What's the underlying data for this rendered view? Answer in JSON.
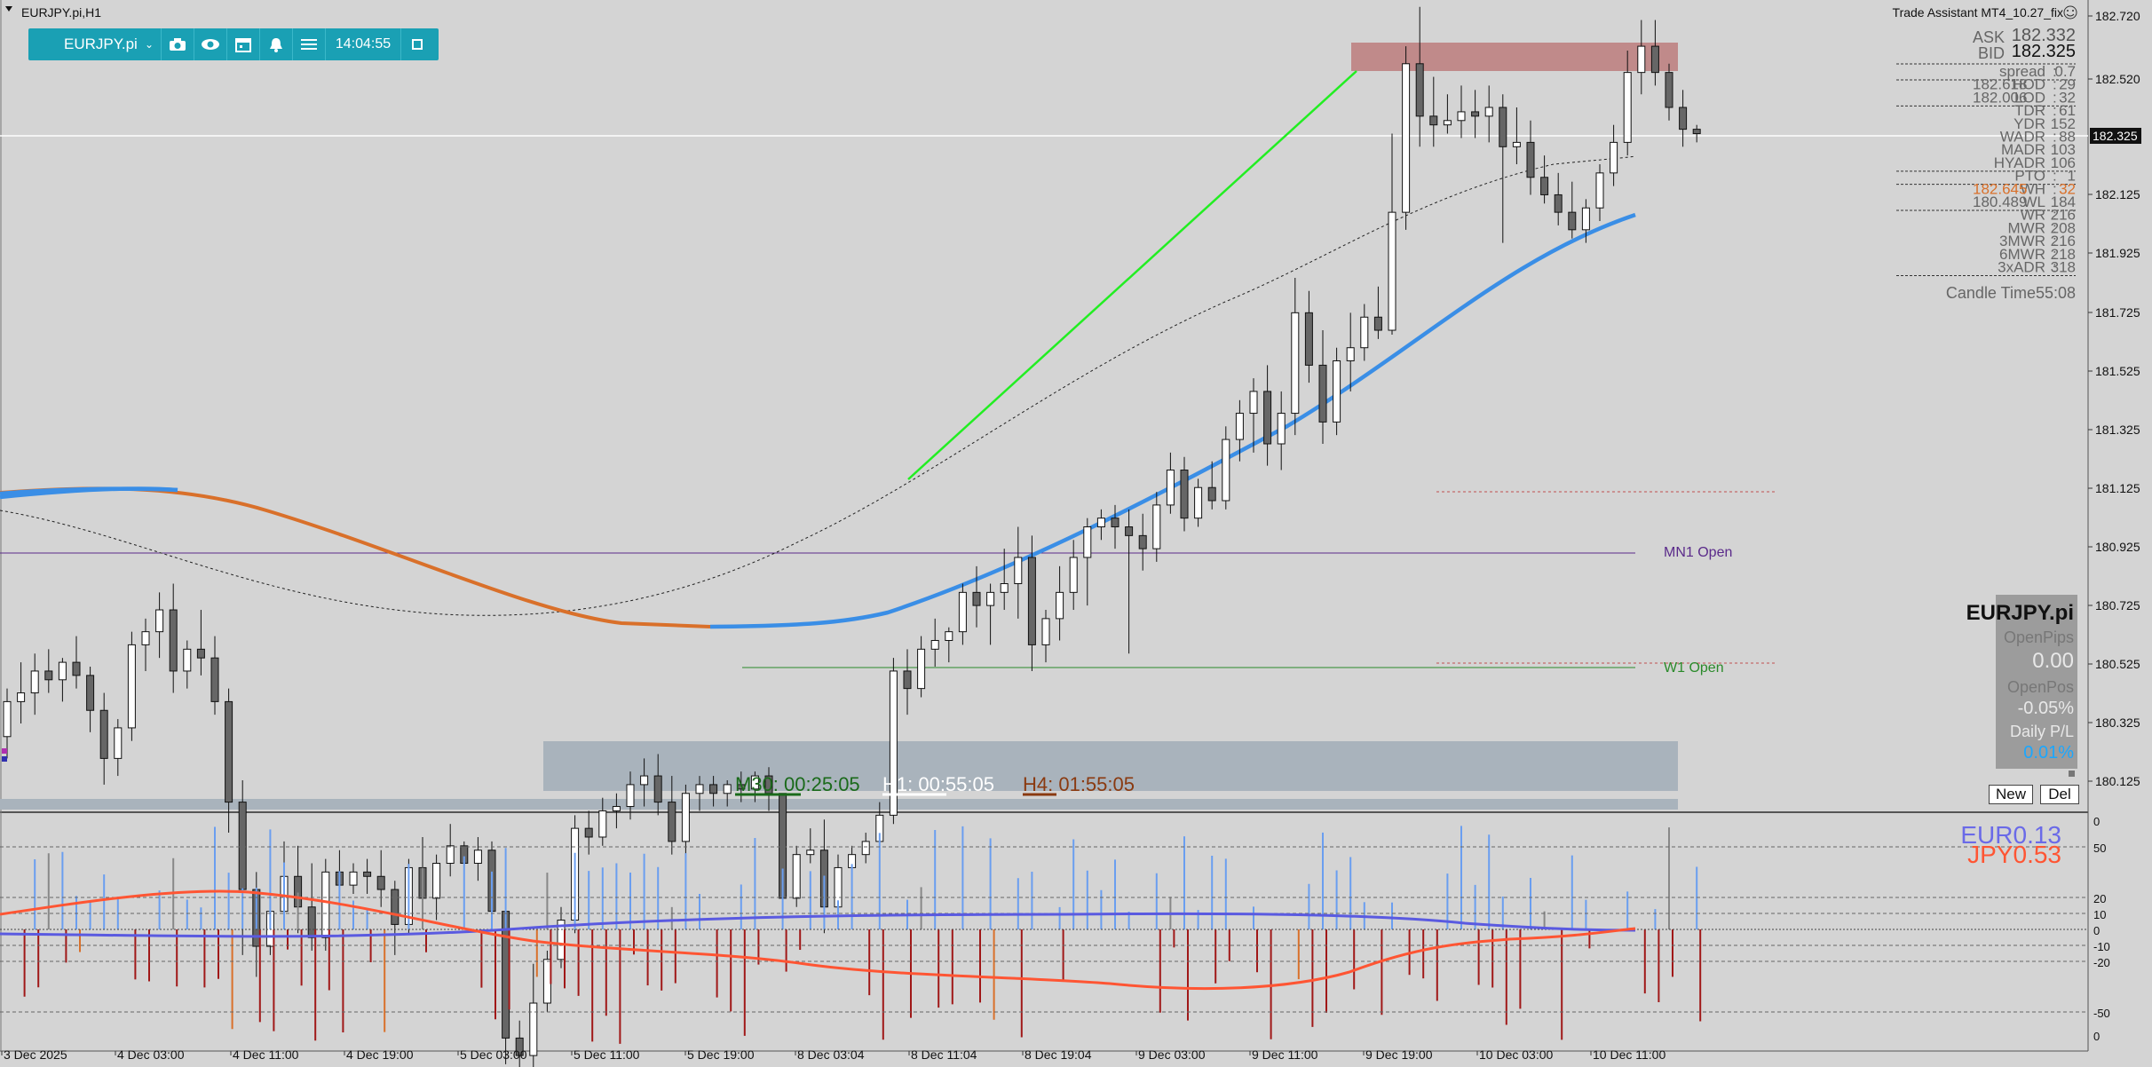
{
  "window_title": "EURJPY.pi,H1",
  "toolbar": {
    "symbol": "EURJPY.pi",
    "time": "14:04:55",
    "icons": [
      "camera-icon",
      "eye-icon",
      "calendar-icon",
      "alert-bell-icon",
      "menu-icon",
      "window-icon"
    ]
  },
  "indicator_title": "Trade Assistant MT4_10.27_fix",
  "info_panel": {
    "ask_label": "ASK",
    "ask_value": "182.332",
    "bid_label": "BID",
    "bid_value": "182.325",
    "rows": [
      {
        "label": "spread",
        "value": "0.7"
      },
      {
        "label": "HOD",
        "extra": "182.618",
        "value": "29"
      },
      {
        "label": "LOD",
        "extra": "182.006",
        "value": "32"
      },
      {
        "label": "TDR",
        "value": "61"
      },
      {
        "label": "YDR",
        "value": "152"
      },
      {
        "label": "WADR",
        "value": "88"
      },
      {
        "label": "MADR",
        "value": "103"
      },
      {
        "label": "HYADR",
        "value": "106"
      },
      {
        "label": "PTO",
        "value": "1"
      },
      {
        "label": "WH",
        "extra": "182.645",
        "value": "32"
      },
      {
        "label": "WL",
        "extra": "180.489",
        "value": "184"
      },
      {
        "label": "WR",
        "value": "216"
      },
      {
        "label": "MWR",
        "value": "208"
      },
      {
        "label": "3MWR",
        "value": "216"
      },
      {
        "label": "6MWR",
        "value": "218"
      },
      {
        "label": "3xADR",
        "value": "318"
      }
    ],
    "candle_time": "Candle Time55:08"
  },
  "account_panel": {
    "symbol": "EURJPY.pi",
    "open_pips_label": "OpenPips",
    "open_pips": "0.00",
    "open_pos_label": "OpenPos",
    "open_pos": "-0.05%",
    "daily_pl_label": "Daily P/L",
    "daily_pl": "0.01%",
    "new_button": "New",
    "del_button": "Del"
  },
  "timers": {
    "m30": "M30: 00:25:05",
    "h1": "H1: 00:55:05",
    "h4": "H4: 01:55:05"
  },
  "level_labels": {
    "mn1": "MN1 Open",
    "w1": "W1 Open"
  },
  "price_axis": {
    "labels": [
      "182.720",
      "182.520",
      "182.325",
      "182.125",
      "181.925",
      "181.725",
      "181.525",
      "181.325",
      "181.125",
      "180.925",
      "180.725",
      "180.525",
      "180.325",
      "180.125"
    ],
    "current": "182.325"
  },
  "time_axis": [
    "3 Dec 2025",
    "4 Dec 03:00",
    "4 Dec 11:00",
    "4 Dec 19:00",
    "5 Dec 03:00",
    "5 Dec 11:00",
    "5 Dec 19:00",
    "8 Dec 03:04",
    "8 Dec 11:04",
    "8 Dec 19:04",
    "9 Dec 03:00",
    "9 Dec 11:00",
    "9 Dec 19:00",
    "10 Dec 03:00",
    "10 Dec 11:00"
  ],
  "oscillator": {
    "axis_labels": [
      "50",
      "20",
      "10",
      "0",
      "-10",
      "-20",
      "-50"
    ],
    "eur_label": "EUR0.13",
    "jpy_label": "JPY0.53"
  },
  "colors": {
    "bg": "#d4d4d4",
    "toolbar": "#1aa0b4",
    "ma_blue": "#3a8ee6",
    "ma_orange": "#d9702a",
    "trend_green": "#22ee22",
    "zone_red": "#c08a8a",
    "zone_gray": "#a9b3bc",
    "eur": "#5a5ae0",
    "jpy": "#ff5533",
    "up_bar": "#6a9ef0",
    "down_bar": "#a01818"
  },
  "chart_data": {
    "type": "candlestick",
    "symbol": "EURJPY.pi",
    "timeframe": "H1",
    "ylim": [
      180.0,
      182.75
    ],
    "candles_ohlc": [
      [
        180.95,
        181.06,
        180.9,
        181.03
      ],
      [
        181.03,
        181.12,
        180.98,
        181.05
      ],
      [
        181.05,
        181.14,
        181.0,
        181.1
      ],
      [
        181.1,
        181.15,
        181.05,
        181.08
      ],
      [
        181.08,
        181.13,
        181.03,
        181.12
      ],
      [
        181.12,
        181.18,
        181.06,
        181.09
      ],
      [
        181.09,
        181.11,
        180.96,
        181.01
      ],
      [
        181.01,
        181.05,
        180.84,
        180.9
      ],
      [
        180.9,
        180.99,
        180.86,
        180.97
      ],
      [
        180.97,
        181.19,
        180.94,
        181.16
      ],
      [
        181.16,
        181.22,
        181.1,
        181.19
      ],
      [
        181.19,
        181.28,
        181.13,
        181.24
      ],
      [
        181.24,
        181.3,
        181.05,
        181.1
      ],
      [
        181.1,
        181.17,
        181.06,
        181.15
      ],
      [
        181.15,
        181.24,
        181.09,
        181.13
      ],
      [
        181.13,
        181.18,
        181.0,
        181.03
      ],
      [
        181.03,
        181.06,
        180.73,
        180.8
      ],
      [
        180.8,
        180.85,
        180.45,
        180.6
      ],
      [
        180.6,
        180.64,
        180.4,
        180.47
      ],
      [
        180.47,
        180.58,
        180.45,
        180.55
      ],
      [
        180.55,
        180.71,
        180.52,
        180.63
      ],
      [
        180.63,
        180.7,
        180.5,
        180.56
      ],
      [
        180.56,
        180.66,
        180.46,
        180.49
      ],
      [
        180.49,
        180.67,
        180.46,
        180.64
      ],
      [
        180.64,
        180.69,
        180.58,
        180.61
      ],
      [
        180.61,
        180.66,
        180.59,
        180.64
      ],
      [
        180.64,
        180.67,
        180.59,
        180.63
      ],
      [
        180.63,
        180.69,
        180.56,
        180.6
      ],
      [
        180.6,
        180.62,
        180.45,
        180.52
      ],
      [
        180.52,
        180.67,
        180.5,
        180.65
      ],
      [
        180.65,
        180.72,
        180.55,
        180.58
      ],
      [
        180.58,
        180.68,
        180.53,
        180.66
      ],
      [
        180.66,
        180.75,
        180.63,
        180.7
      ],
      [
        180.7,
        180.71,
        180.62,
        180.66
      ],
      [
        180.66,
        180.72,
        180.62,
        180.69
      ],
      [
        180.69,
        180.71,
        180.52,
        180.55
      ],
      [
        180.55,
        180.59,
        180.2,
        180.26
      ],
      [
        180.26,
        180.3,
        180.08,
        180.22
      ],
      [
        180.22,
        180.43,
        180.1,
        180.34
      ],
      [
        180.34,
        180.46,
        180.32,
        180.44
      ],
      [
        180.44,
        180.56,
        180.42,
        180.53
      ],
      [
        180.53,
        180.77,
        180.5,
        180.74
      ],
      [
        180.74,
        180.78,
        180.68,
        180.72
      ],
      [
        180.72,
        180.81,
        180.7,
        180.78
      ],
      [
        180.78,
        180.82,
        180.74,
        180.79
      ],
      [
        180.79,
        180.87,
        180.76,
        180.84
      ],
      [
        180.84,
        180.9,
        180.79,
        180.86
      ],
      [
        180.86,
        180.91,
        180.77,
        180.8
      ],
      [
        180.8,
        180.86,
        180.68,
        180.71
      ],
      [
        180.71,
        180.84,
        180.68,
        180.82
      ],
      [
        180.82,
        180.86,
        180.78,
        180.84
      ],
      [
        180.84,
        180.86,
        180.79,
        180.82
      ],
      [
        180.82,
        180.85,
        180.79,
        180.84
      ],
      [
        180.84,
        180.87,
        180.8,
        180.83
      ],
      [
        180.83,
        180.87,
        180.8,
        180.86
      ],
      [
        180.86,
        180.88,
        180.78,
        180.82
      ],
      [
        180.82,
        180.77,
        180.52,
        180.58
      ],
      [
        180.58,
        180.7,
        180.56,
        180.68
      ],
      [
        180.68,
        180.74,
        180.66,
        180.69
      ],
      [
        180.69,
        180.76,
        180.5,
        180.56
      ],
      [
        180.56,
        180.68,
        180.52,
        180.65
      ],
      [
        180.65,
        180.7,
        180.62,
        180.68
      ],
      [
        180.68,
        180.73,
        180.66,
        180.71
      ],
      [
        180.71,
        180.8,
        180.69,
        180.77
      ],
      [
        180.77,
        181.13,
        180.75,
        181.1
      ],
      [
        181.1,
        181.15,
        181.0,
        181.06
      ],
      [
        181.06,
        181.18,
        181.04,
        181.15
      ],
      [
        181.15,
        181.22,
        181.11,
        181.17
      ],
      [
        181.17,
        181.2,
        181.12,
        181.19
      ],
      [
        181.19,
        181.3,
        181.16,
        181.28
      ],
      [
        181.28,
        181.34,
        181.2,
        181.25
      ],
      [
        181.25,
        181.3,
        181.16,
        181.28
      ],
      [
        181.28,
        181.38,
        181.24,
        181.3
      ],
      [
        181.3,
        181.43,
        181.22,
        181.36
      ],
      [
        181.36,
        181.41,
        181.1,
        181.16
      ],
      [
        181.16,
        181.24,
        181.12,
        181.22
      ],
      [
        181.22,
        181.34,
        181.17,
        181.28
      ],
      [
        181.28,
        181.4,
        181.24,
        181.36
      ],
      [
        181.36,
        181.45,
        181.25,
        181.43
      ],
      [
        181.43,
        181.47,
        181.4,
        181.45
      ],
      [
        181.45,
        181.48,
        181.38,
        181.43
      ],
      [
        181.43,
        181.47,
        181.14,
        181.41
      ],
      [
        181.41,
        181.46,
        181.33,
        181.38
      ],
      [
        181.38,
        181.51,
        181.35,
        181.48
      ],
      [
        181.48,
        181.6,
        181.46,
        181.56
      ],
      [
        181.56,
        181.59,
        181.42,
        181.45
      ],
      [
        181.45,
        181.54,
        181.43,
        181.52
      ],
      [
        181.52,
        181.58,
        181.47,
        181.49
      ],
      [
        181.49,
        181.66,
        181.47,
        181.63
      ],
      [
        181.63,
        181.72,
        181.58,
        181.69
      ],
      [
        181.69,
        181.77,
        181.6,
        181.74
      ],
      [
        181.74,
        181.8,
        181.57,
        181.62
      ],
      [
        181.62,
        181.74,
        181.56,
        181.69
      ],
      [
        181.69,
        182.0,
        181.64,
        181.92
      ],
      [
        181.92,
        181.97,
        181.76,
        181.8
      ],
      [
        181.8,
        181.88,
        181.62,
        181.67
      ],
      [
        181.67,
        181.84,
        181.64,
        181.81
      ],
      [
        181.81,
        181.92,
        181.74,
        181.84
      ],
      [
        181.84,
        181.94,
        181.81,
        181.91
      ],
      [
        181.91,
        181.98,
        181.86,
        181.88
      ],
      [
        181.88,
        182.33,
        181.87,
        182.15
      ],
      [
        182.15,
        182.53,
        182.11,
        182.49
      ],
      [
        182.49,
        182.62,
        182.3,
        182.37
      ],
      [
        182.37,
        182.46,
        182.3,
        182.35
      ],
      [
        182.35,
        182.42,
        182.33,
        182.36
      ],
      [
        182.36,
        182.44,
        182.32,
        182.38
      ],
      [
        182.38,
        182.43,
        182.32,
        182.37
      ],
      [
        182.37,
        182.44,
        182.31,
        182.39
      ],
      [
        182.39,
        182.42,
        182.08,
        182.3
      ],
      [
        182.3,
        182.39,
        182.26,
        182.31
      ],
      [
        182.31,
        182.36,
        182.19,
        182.23
      ],
      [
        182.23,
        182.28,
        182.17,
        182.19
      ],
      [
        182.19,
        182.24,
        182.12,
        182.15
      ],
      [
        182.15,
        182.22,
        182.09,
        182.11
      ],
      [
        182.11,
        182.18,
        182.08,
        182.16
      ],
      [
        182.16,
        182.26,
        182.13,
        182.24
      ],
      [
        182.24,
        182.35,
        182.21,
        182.31
      ],
      [
        182.31,
        182.52,
        182.28,
        182.47
      ],
      [
        182.47,
        182.59,
        182.42,
        182.53
      ],
      [
        182.53,
        182.59,
        182.44,
        182.47
      ],
      [
        182.47,
        182.49,
        182.36,
        182.39
      ],
      [
        182.39,
        182.43,
        182.3,
        182.34
      ],
      [
        182.34,
        182.35,
        182.31,
        182.33
      ]
    ],
    "moving_averages": {
      "blue_ma": "rising",
      "orange_ma": "partial"
    },
    "levels": {
      "mn1_open": 180.925,
      "w1_open": 180.54
    },
    "oscillator_series": [
      "EUR",
      "JPY"
    ]
  }
}
